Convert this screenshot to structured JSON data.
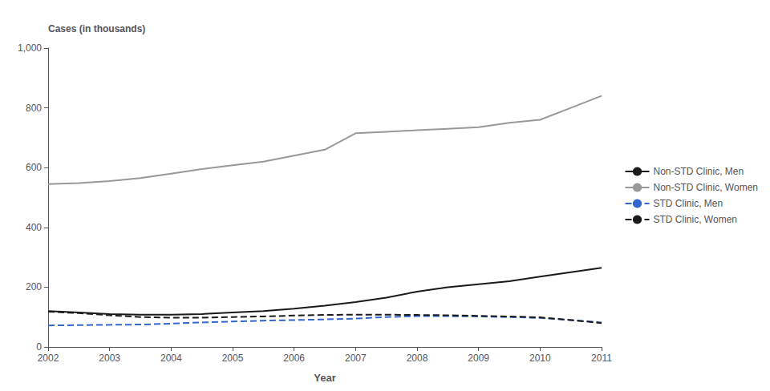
{
  "chart_data": {
    "type": "line",
    "xlabel": "Year",
    "ylabel": "Cases (in thousands)",
    "x": [
      2002,
      2002.5,
      2003,
      2003.5,
      2004,
      2004.5,
      2005,
      2005.5,
      2006,
      2006.5,
      2007,
      2007.5,
      2008,
      2008.5,
      2009,
      2009.5,
      2010,
      2010.5,
      2011
    ],
    "series": [
      {
        "name": "Non-STD Clinic, Men",
        "color": "#1a1a1a",
        "line_style": "solid",
        "values": [
          120,
          115,
          110,
          108,
          108,
          110,
          115,
          120,
          128,
          138,
          150,
          165,
          185,
          200,
          210,
          220,
          235,
          250,
          265
        ]
      },
      {
        "name": "Non-STD Clinic, Women",
        "color": "#999999",
        "line_style": "solid",
        "values": [
          545,
          548,
          555,
          565,
          580,
          595,
          608,
          620,
          640,
          660,
          715,
          720,
          725,
          730,
          735,
          750,
          760,
          800,
          840
        ]
      },
      {
        "name": "STD Clinic, Men",
        "color": "#3366cc",
        "line_style": "dashed",
        "values": [
          72,
          73,
          74,
          75,
          78,
          82,
          85,
          88,
          90,
          92,
          95,
          100,
          103,
          103,
          102,
          100,
          97,
          90,
          82
        ]
      },
      {
        "name": "STD Clinic, Women",
        "color": "#1a1a1a",
        "line_style": "dashed",
        "values": [
          118,
          113,
          106,
          100,
          98,
          98,
          100,
          102,
          105,
          107,
          108,
          108,
          107,
          106,
          104,
          102,
          99,
          90,
          80
        ]
      }
    ],
    "xlim": [
      2002,
      2011
    ],
    "xticks": [
      2002,
      2003,
      2004,
      2005,
      2006,
      2007,
      2008,
      2009,
      2010,
      2011
    ],
    "ylim": [
      0,
      1000
    ],
    "yticks": [
      0,
      200,
      400,
      600,
      800,
      {
        "value": 1000,
        "label": "1,000"
      }
    ],
    "grid": false,
    "legend": "right"
  }
}
